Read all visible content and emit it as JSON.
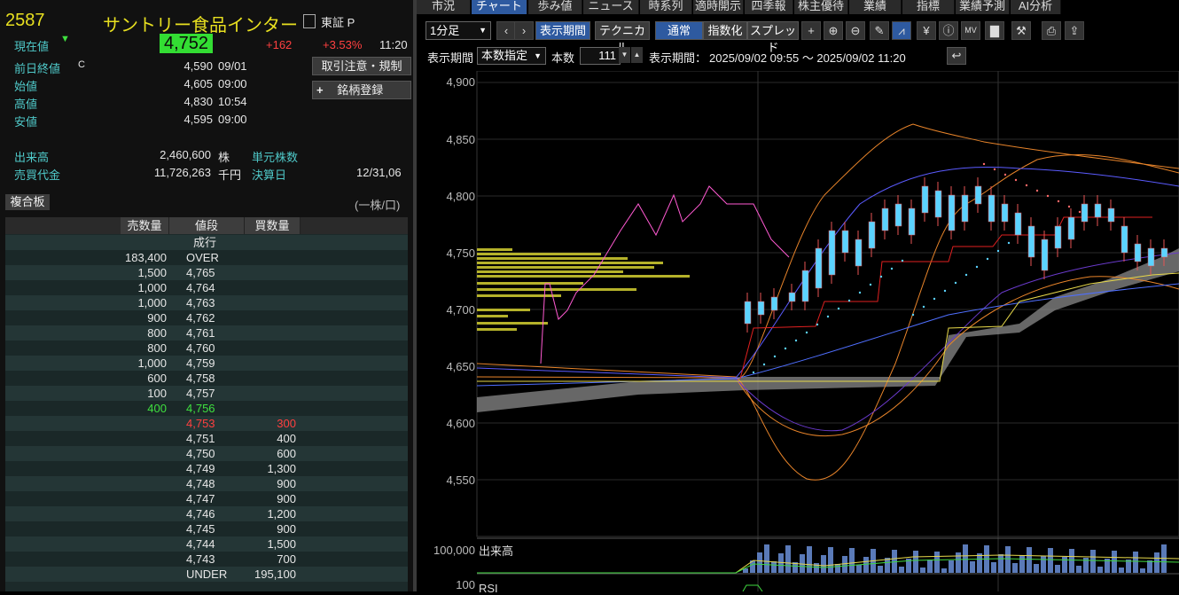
{
  "stock": {
    "code": "2587",
    "name": "サントリー食品インター",
    "market": "東証 P",
    "current_label": "現在値",
    "current_arrow": "▼",
    "current_price": "4,752",
    "change": "+162",
    "change_pct": "+3.53%",
    "time": "11:20"
  },
  "summary": [
    {
      "label": "前日終値",
      "flag": "C",
      "value": "4,590",
      "time": "09/01"
    },
    {
      "label": "始値",
      "flag": "",
      "value": "4,605",
      "time": "09:00"
    },
    {
      "label": "高値",
      "flag": "",
      "value": "4,830",
      "time": "10:54"
    },
    {
      "label": "安値",
      "flag": "",
      "value": "4,595",
      "time": "09:00"
    }
  ],
  "volume": {
    "label": "出来高",
    "value": "2,460,600",
    "unit": "株",
    "unit_label": "単元株数"
  },
  "turnover": {
    "label": "売買代金",
    "value": "11,726,263",
    "unit": "千円",
    "settle_label": "決算日",
    "settle_value": "12/31,06"
  },
  "buttons": {
    "notice": "取引注意・規制",
    "register": "銘柄登録",
    "register_icon": "+"
  },
  "orderbook": {
    "title": "複合板",
    "unit_note": "(一株/口)",
    "headers": {
      "sell": "売数量",
      "price": "値段",
      "buy": "買数量"
    },
    "market_order": "成行",
    "rows": [
      {
        "sell": "183,400",
        "price": "OVER",
        "buy": "",
        "cls": ""
      },
      {
        "sell": "1,500",
        "price": "4,765",
        "buy": "",
        "cls": ""
      },
      {
        "sell": "1,000",
        "price": "4,764",
        "buy": "",
        "cls": ""
      },
      {
        "sell": "1,000",
        "price": "4,763",
        "buy": "",
        "cls": ""
      },
      {
        "sell": "900",
        "price": "4,762",
        "buy": "",
        "cls": ""
      },
      {
        "sell": "800",
        "price": "4,761",
        "buy": "",
        "cls": ""
      },
      {
        "sell": "800",
        "price": "4,760",
        "buy": "",
        "cls": ""
      },
      {
        "sell": "1,000",
        "price": "4,759",
        "buy": "",
        "cls": ""
      },
      {
        "sell": "600",
        "price": "4,758",
        "buy": "",
        "cls": ""
      },
      {
        "sell": "100",
        "price": "4,757",
        "buy": "",
        "cls": ""
      },
      {
        "sell": "400",
        "price": "4,756",
        "buy": "",
        "cls": "green"
      },
      {
        "sell": "",
        "price": "4,753",
        "buy": "300",
        "cls": "red"
      },
      {
        "sell": "",
        "price": "4,751",
        "buy": "400",
        "cls": ""
      },
      {
        "sell": "",
        "price": "4,750",
        "buy": "600",
        "cls": ""
      },
      {
        "sell": "",
        "price": "4,749",
        "buy": "1,300",
        "cls": ""
      },
      {
        "sell": "",
        "price": "4,748",
        "buy": "900",
        "cls": ""
      },
      {
        "sell": "",
        "price": "4,747",
        "buy": "900",
        "cls": ""
      },
      {
        "sell": "",
        "price": "4,746",
        "buy": "1,200",
        "cls": ""
      },
      {
        "sell": "",
        "price": "4,745",
        "buy": "900",
        "cls": ""
      },
      {
        "sell": "",
        "price": "4,744",
        "buy": "1,500",
        "cls": ""
      },
      {
        "sell": "",
        "price": "4,743",
        "buy": "700",
        "cls": ""
      },
      {
        "sell": "",
        "price": "UNDER",
        "buy": "195,100",
        "cls": ""
      }
    ]
  },
  "tabs": [
    "市況",
    "チャート",
    "歩み値",
    "ニュース",
    "時系列",
    "適時開示",
    "四季報",
    "株主優待",
    "業績",
    "指標",
    "業績予測",
    "AI分析"
  ],
  "active_tab": 1,
  "toolbar": {
    "interval": "1分足",
    "period_btn": "表示期間",
    "technical_btn": "テクニカル",
    "normal_btn": "通常",
    "index_btn": "指数化",
    "spread_btn": "スプレッド"
  },
  "period_row": {
    "label": "表示期間",
    "mode": "本数指定",
    "count_label": "本数",
    "count": "111",
    "range_label": "表示期間：",
    "range": "2025/09/02 09:55 ～ 2025/09/02 11:20"
  },
  "chart_data": {
    "type": "candlestick",
    "y_ticks": [
      "4,900",
      "4,850",
      "4,800",
      "4,750",
      "4,700",
      "4,650",
      "4,600",
      "4,550"
    ],
    "ylim": [
      4530,
      4905
    ],
    "volume_label": "出来高",
    "volume_tick": "100,000",
    "rsi_label": "RSI",
    "rsi_tick": "100",
    "open": 4605,
    "high": 4830,
    "low": 4595,
    "close": 4752
  },
  "colors": {
    "accent": "#2e5aa0",
    "up": "#ff4040",
    "down": "#3fe03f",
    "price_box": "#33dd33",
    "candle": "#5bd3ff"
  }
}
